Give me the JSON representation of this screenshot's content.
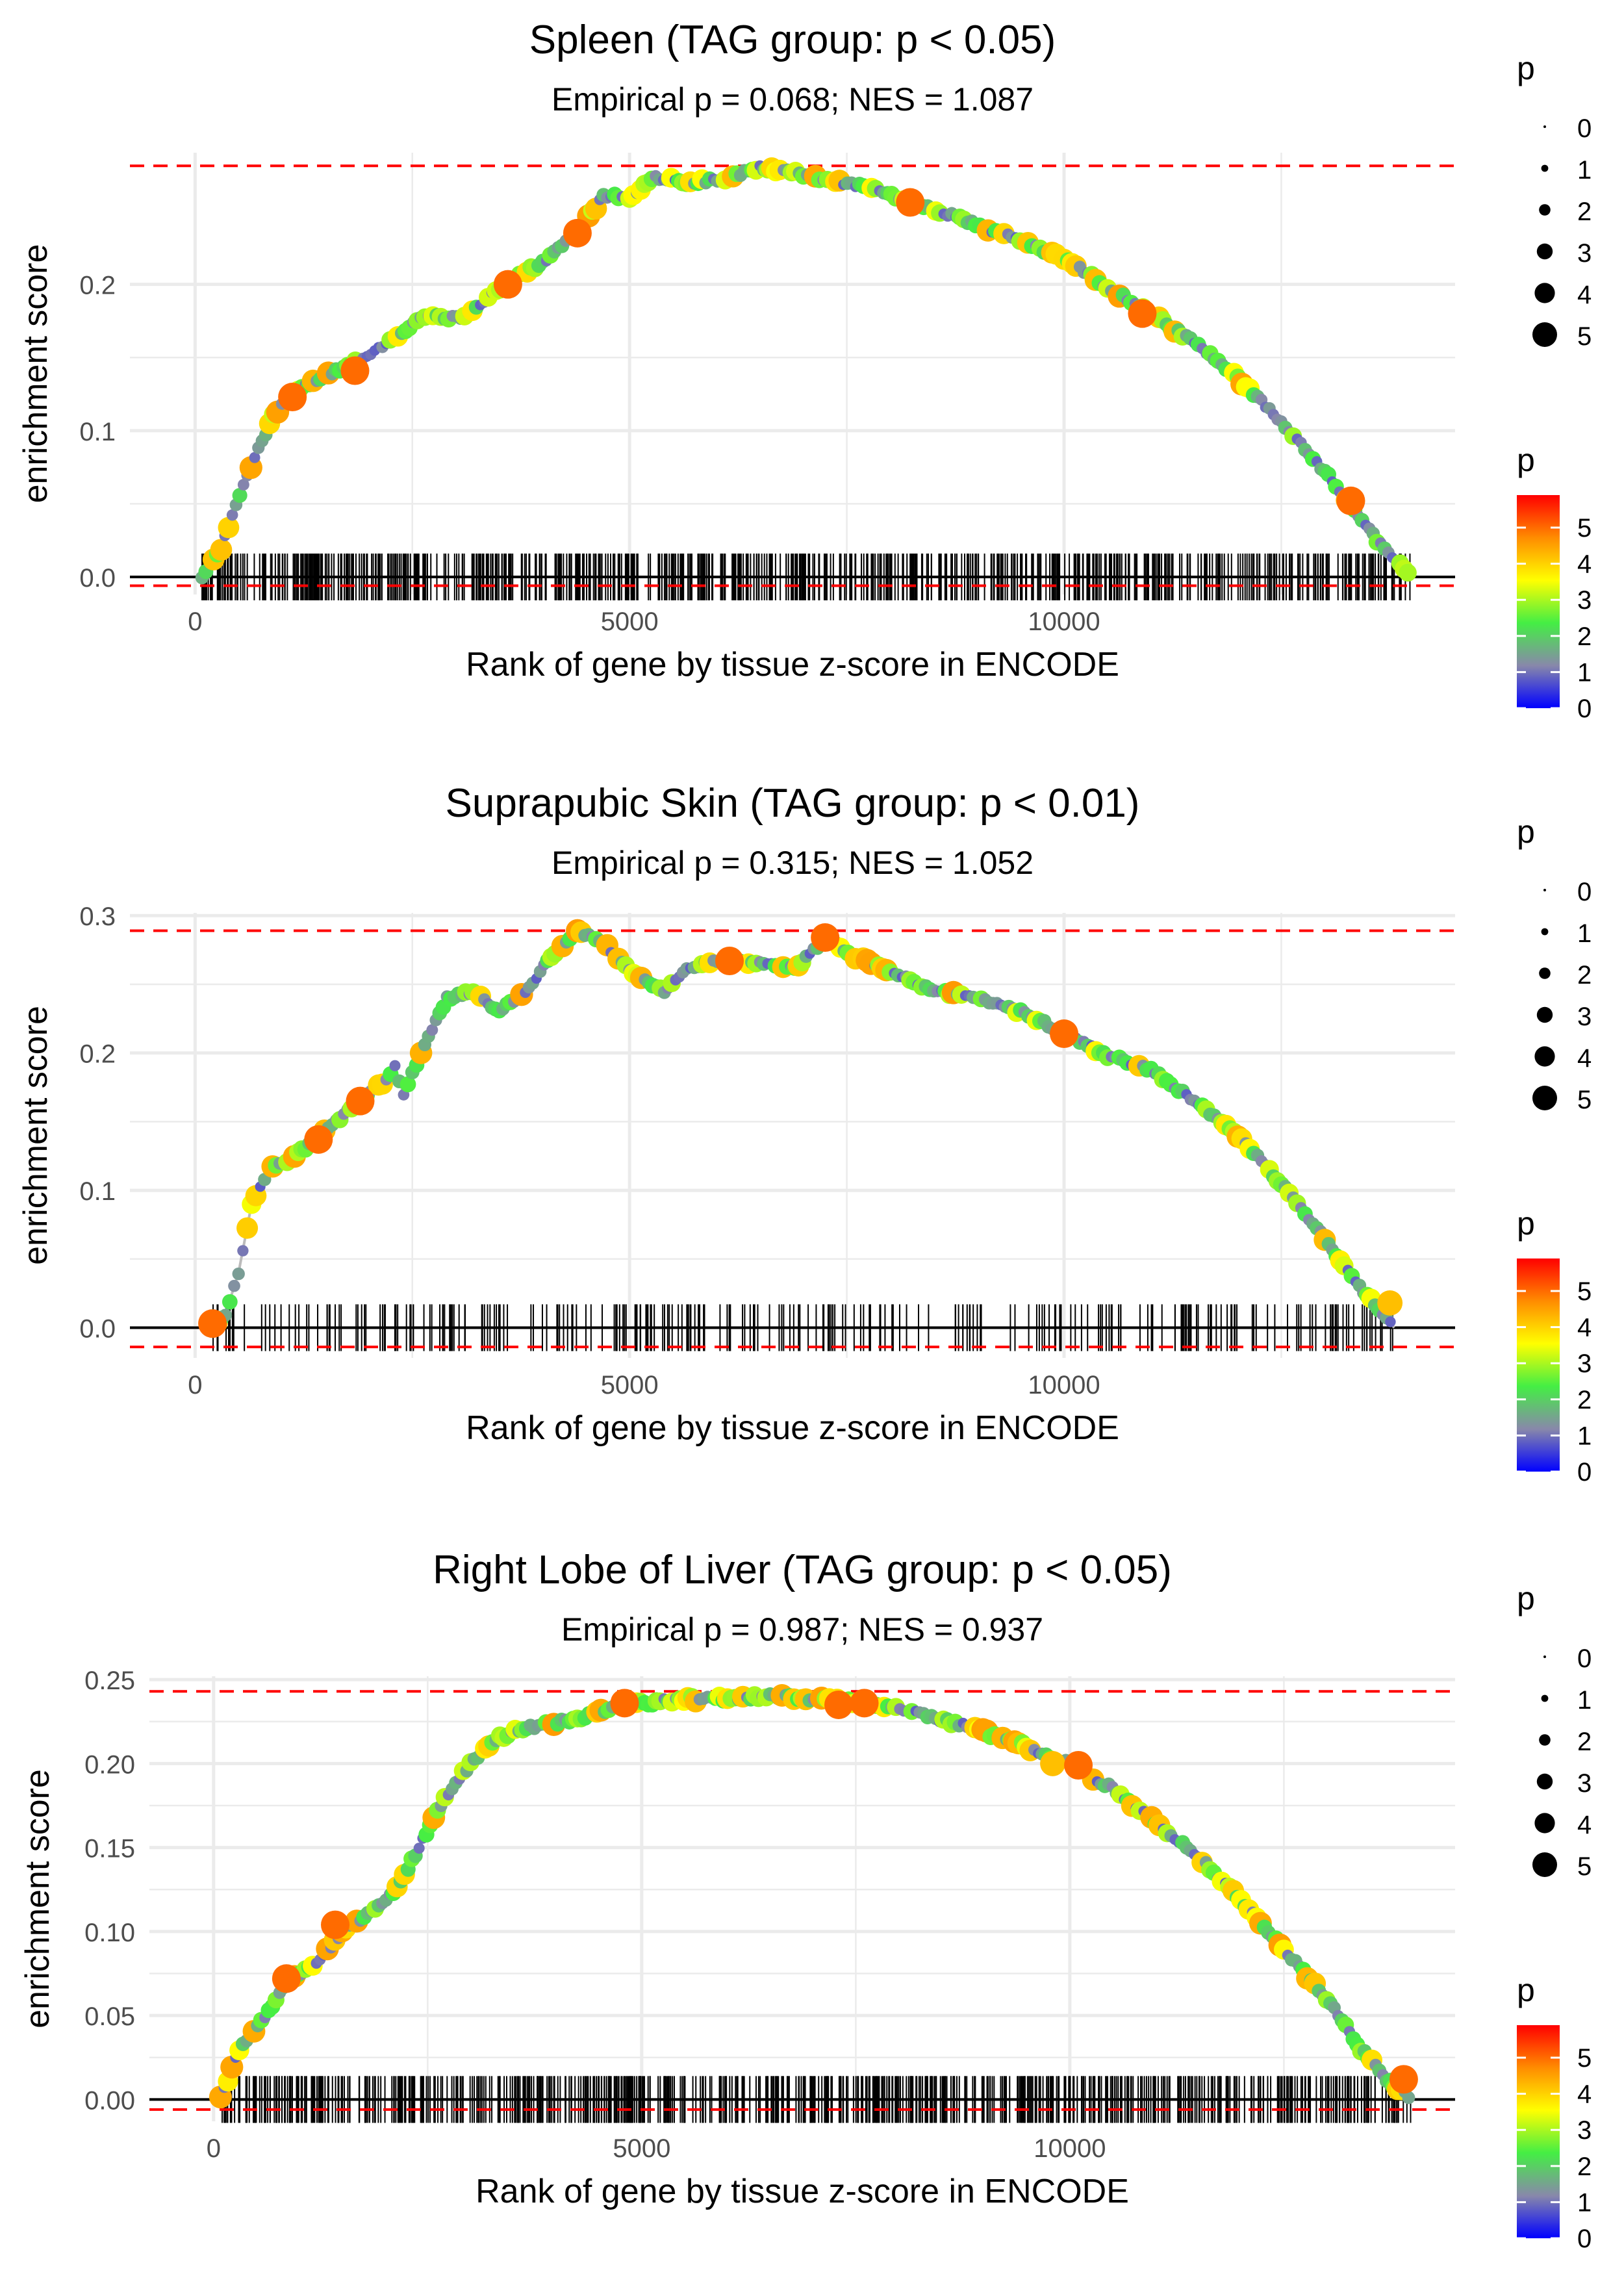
{
  "colors": {
    "background": "#ffffff",
    "grid": "#ebebeb",
    "threshold_line": "#ff0000",
    "zero_line": "#000000",
    "curve_line": "#bbbbbb",
    "gradient_stops": [
      "#0000ff",
      "#8888aa",
      "#44ee44",
      "#ffff00",
      "#ff8c00",
      "#ff0000"
    ]
  },
  "chart_data": [
    {
      "type": "scatter",
      "title": "Spleen (TAG group: p < 0.05)",
      "subtitle": "Empirical p = 0.068; NES = 1.087",
      "xlabel": "Rank of gene by tissue z-score in ENCODE",
      "ylabel": "enrichment score",
      "xlim": [
        -750,
        14500
      ],
      "ylim": [
        -0.012,
        0.29
      ],
      "x_ticks": [
        0,
        5000,
        10000
      ],
      "x_tick_labels": [
        "0",
        "5000",
        "10000"
      ],
      "y_ticks": [
        0.0,
        0.1,
        0.2
      ],
      "y_tick_labels": [
        "0.0",
        "0.1",
        "0.2"
      ],
      "threshold_upper": 0.281,
      "threshold_lower": -0.006,
      "gene_rank_range": [
        80,
        14000
      ],
      "gene_rank_count": 720,
      "curve": [
        [
          80,
          0
        ],
        [
          300,
          0.02
        ],
        [
          600,
          0.07
        ],
        [
          900,
          0.11
        ],
        [
          1100,
          0.124
        ],
        [
          1400,
          0.135
        ],
        [
          1800,
          0.145
        ],
        [
          2200,
          0.16
        ],
        [
          2600,
          0.177
        ],
        [
          3100,
          0.178
        ],
        [
          3600,
          0.202
        ],
        [
          4000,
          0.215
        ],
        [
          4400,
          0.236
        ],
        [
          4700,
          0.26
        ],
        [
          5000,
          0.26
        ],
        [
          5300,
          0.273
        ],
        [
          5700,
          0.27
        ],
        [
          6100,
          0.272
        ],
        [
          6500,
          0.28
        ],
        [
          7000,
          0.275
        ],
        [
          7600,
          0.268
        ],
        [
          8200,
          0.258
        ],
        [
          8800,
          0.245
        ],
        [
          9400,
          0.232
        ],
        [
          10000,
          0.218
        ],
        [
          10500,
          0.198
        ],
        [
          11000,
          0.18
        ],
        [
          11500,
          0.16
        ],
        [
          12000,
          0.136
        ],
        [
          12500,
          0.106
        ],
        [
          13000,
          0.072
        ],
        [
          13300,
          0.05
        ],
        [
          13600,
          0.025
        ],
        [
          14000,
          0
        ]
      ],
      "highlight_points": [
        [
          1120,
          0.123,
          5
        ],
        [
          1840,
          0.141,
          5
        ],
        [
          3600,
          0.2,
          5
        ],
        [
          4400,
          0.235,
          5
        ],
        [
          8230,
          0.256,
          5
        ],
        [
          10900,
          0.18,
          5
        ],
        [
          13300,
          0.052,
          5
        ]
      ],
      "size_legend": {
        "title": "p",
        "labels": [
          "0",
          "1",
          "2",
          "3",
          "4",
          "5"
        ]
      },
      "color_legend": {
        "title": "p",
        "labels": [
          "5",
          "4",
          "3",
          "2",
          "1",
          "0"
        ],
        "max": 5.9
      }
    },
    {
      "type": "scatter",
      "title": "Suprapubic Skin (TAG group: p < 0.01)",
      "subtitle": "Empirical p = 0.315; NES = 1.052",
      "xlabel": "Rank of gene by tissue z-score in ENCODE",
      "ylabel": "enrichment score",
      "xlim": [
        -750,
        14500
      ],
      "ylim": [
        -0.022,
        0.302
      ],
      "x_ticks": [
        0,
        5000,
        10000
      ],
      "x_tick_labels": [
        "0",
        "5000",
        "10000"
      ],
      "y_ticks": [
        0.0,
        0.1,
        0.2,
        0.3
      ],
      "y_tick_labels": [
        "0.0",
        "0.1",
        "0.2",
        "0.3"
      ],
      "threshold_upper": 0.289,
      "threshold_lower": -0.014,
      "gene_rank_range": [
        200,
        13800
      ],
      "gene_rank_count": 280,
      "curve": [
        [
          200,
          0
        ],
        [
          350,
          0.01
        ],
        [
          500,
          0.04
        ],
        [
          650,
          0.09
        ],
        [
          850,
          0.115
        ],
        [
          1100,
          0.123
        ],
        [
          1400,
          0.137
        ],
        [
          1800,
          0.16
        ],
        [
          2200,
          0.18
        ],
        [
          2300,
          0.19
        ],
        [
          2400,
          0.17
        ],
        [
          2600,
          0.2
        ],
        [
          2900,
          0.24
        ],
        [
          3200,
          0.245
        ],
        [
          3500,
          0.23
        ],
        [
          3800,
          0.245
        ],
        [
          4100,
          0.27
        ],
        [
          4400,
          0.289
        ],
        [
          4700,
          0.28
        ],
        [
          5000,
          0.26
        ],
        [
          5400,
          0.245
        ],
        [
          5700,
          0.263
        ],
        [
          6100,
          0.268
        ],
        [
          6500,
          0.265
        ],
        [
          6900,
          0.262
        ],
        [
          7250,
          0.283
        ],
        [
          7600,
          0.27
        ],
        [
          8000,
          0.26
        ],
        [
          8500,
          0.245
        ],
        [
          9000,
          0.24
        ],
        [
          9500,
          0.23
        ],
        [
          10000,
          0.215
        ],
        [
          10500,
          0.198
        ],
        [
          11000,
          0.188
        ],
        [
          11500,
          0.165
        ],
        [
          12000,
          0.14
        ],
        [
          12500,
          0.105
        ],
        [
          13000,
          0.065
        ],
        [
          13400,
          0.03
        ],
        [
          13800,
          0
        ]
      ],
      "highlight_points": [
        [
          200,
          0.003,
          5
        ],
        [
          1420,
          0.137,
          5
        ],
        [
          1900,
          0.165,
          5
        ],
        [
          6150,
          0.267,
          5
        ],
        [
          7250,
          0.284,
          5
        ],
        [
          10000,
          0.214,
          5
        ],
        [
          13750,
          0.018,
          4.2
        ]
      ],
      "size_legend": {
        "title": "p",
        "labels": [
          "0",
          "1",
          "2",
          "3",
          "4",
          "5"
        ]
      },
      "color_legend": {
        "title": "p",
        "labels": [
          "5",
          "4",
          "3",
          "2",
          "1",
          "0"
        ],
        "max": 5.9
      }
    },
    {
      "type": "scatter",
      "title": "Right Lobe of Liver (TAG group: p < 0.05)",
      "subtitle": "Empirical p = 0.987; NES = 0.937",
      "xlabel": "Rank of gene by tissue z-score in ENCODE",
      "ylabel": "enrichment score",
      "xlim": [
        -750,
        14500
      ],
      "ylim": [
        -0.013,
        0.252
      ],
      "x_ticks": [
        0,
        5000,
        10000
      ],
      "x_tick_labels": [
        "0",
        "5000",
        "10000"
      ],
      "y_ticks": [
        0.0,
        0.05,
        0.1,
        0.15,
        0.2,
        0.25
      ],
      "y_tick_labels": [
        "0.00",
        "0.05",
        "0.10",
        "0.15",
        "0.20",
        "0.25"
      ],
      "threshold_upper": 0.243,
      "threshold_lower": -0.006,
      "gene_rank_range": [
        80,
        14000
      ],
      "gene_rank_count": 720,
      "curve": [
        [
          80,
          0
        ],
        [
          300,
          0.03
        ],
        [
          600,
          0.05
        ],
        [
          900,
          0.072
        ],
        [
          1200,
          0.08
        ],
        [
          1500,
          0.1
        ],
        [
          1800,
          0.11
        ],
        [
          2100,
          0.123
        ],
        [
          2400,
          0.15
        ],
        [
          2700,
          0.18
        ],
        [
          3000,
          0.2
        ],
        [
          3300,
          0.215
        ],
        [
          3700,
          0.222
        ],
        [
          4200,
          0.226
        ],
        [
          4800,
          0.235
        ],
        [
          5400,
          0.238
        ],
        [
          6000,
          0.239
        ],
        [
          6500,
          0.24
        ],
        [
          7100,
          0.238
        ],
        [
          7600,
          0.236
        ],
        [
          8200,
          0.23
        ],
        [
          8800,
          0.222
        ],
        [
          9400,
          0.212
        ],
        [
          10000,
          0.2
        ],
        [
          10500,
          0.185
        ],
        [
          11000,
          0.165
        ],
        [
          11500,
          0.145
        ],
        [
          12000,
          0.118
        ],
        [
          12500,
          0.09
        ],
        [
          13000,
          0.06
        ],
        [
          13400,
          0.03
        ],
        [
          13700,
          0.012
        ],
        [
          14000,
          0
        ]
      ],
      "highlight_points": [
        [
          850,
          0.072,
          5
        ],
        [
          1420,
          0.104,
          5
        ],
        [
          4800,
          0.236,
          5
        ],
        [
          7300,
          0.235,
          5
        ],
        [
          7600,
          0.236,
          5
        ],
        [
          9800,
          0.2,
          4.2
        ],
        [
          10100,
          0.199,
          5
        ],
        [
          13900,
          0.012,
          5
        ]
      ],
      "size_legend": {
        "title": "p",
        "labels": [
          "0",
          "1",
          "2",
          "3",
          "4",
          "5"
        ]
      },
      "color_legend": {
        "title": "p",
        "labels": [
          "5",
          "4",
          "3",
          "2",
          "1",
          "0"
        ],
        "max": 5.9
      }
    }
  ]
}
